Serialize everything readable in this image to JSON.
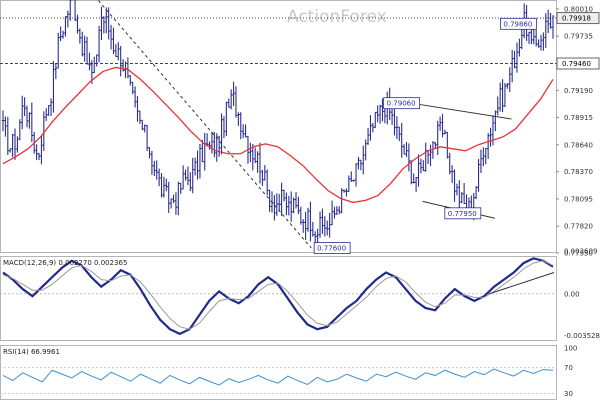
{
  "watermark": "ActionForex",
  "colors": {
    "price_bar": "#2b2f8f",
    "moving_average": "#e8333a",
    "macd_line": "#1f2a8a",
    "macd_signal": "#9a9a9a",
    "rsi_line": "#3d8fd6",
    "trendline": "#333333",
    "current_price_box": "#eeeeee"
  },
  "chart_data": [
    {
      "type": "ohlc",
      "panel": "price",
      "ylim": [
        0.7755,
        0.801
      ],
      "y_ticks": [
        "0.80010",
        "0.79735",
        "0.79460",
        "0.79190",
        "0.78915",
        "0.78640",
        "0.78370",
        "0.78095",
        "0.77820",
        "0.77550"
      ],
      "current_price_label": "0.79918",
      "horizontal_levels": [
        {
          "value": 0.79918,
          "style": "dotted"
        },
        {
          "value": 0.7946,
          "style": "dashed"
        }
      ],
      "annotations": [
        "0.79860",
        "0.79060",
        "0.77950",
        "0.77600"
      ],
      "series": [
        {
          "name": "price",
          "close_path": [
            0.788,
            0.7862,
            0.787,
            0.791,
            0.788,
            0.785,
            0.7893,
            0.792,
            0.7968,
            0.7993,
            0.8012,
            0.7975,
            0.795,
            0.793,
            0.7995,
            0.7985,
            0.7962,
            0.7952,
            0.7925,
            0.79,
            0.788,
            0.786,
            0.7835,
            0.7815,
            0.7808,
            0.7812,
            0.783,
            0.783,
            0.7845,
            0.7862,
            0.786,
            0.7868,
            0.7895,
            0.7912,
            0.7892,
            0.787,
            0.7855,
            0.7845,
            0.7815,
            0.7805,
            0.7808,
            0.7802,
            0.78,
            0.779,
            0.779,
            0.7778,
            0.7782,
            0.7784,
            0.7802,
            0.7815,
            0.7825,
            0.784,
            0.786,
            0.788,
            0.7895,
            0.7905,
            0.789,
            0.7868,
            0.785,
            0.783,
            0.7838,
            0.7862,
            0.7868,
            0.788,
            0.785,
            0.782,
            0.7805,
            0.78,
            0.7825,
            0.7863,
            0.788,
            0.7905,
            0.7917,
            0.794,
            0.7965,
            0.799,
            0.796,
            0.797,
            0.7985,
            0.7992
          ]
        },
        {
          "name": "moving-average",
          "values": [
            0.7845,
            0.7852,
            0.786,
            0.7872,
            0.7888,
            0.7902,
            0.7915,
            0.7928,
            0.7938,
            0.7942,
            0.794,
            0.793,
            0.7918,
            0.7905,
            0.7892,
            0.7878,
            0.7866,
            0.7858,
            0.7855,
            0.7855,
            0.7862,
            0.7865,
            0.7862,
            0.7853,
            0.7843,
            0.783,
            0.7818,
            0.781,
            0.7806,
            0.7808,
            0.7813,
            0.7825,
            0.784,
            0.785,
            0.7858,
            0.7862,
            0.786,
            0.7858,
            0.7864,
            0.7868,
            0.7872,
            0.788,
            0.7895,
            0.791,
            0.793
          ]
        }
      ]
    },
    {
      "type": "line",
      "panel": "macd",
      "title": "MACD(12,26,9) 0.002270 0.002365",
      "ylim": [
        -0.004,
        0.0032
      ],
      "y_ticks": [
        "0.003609",
        "0.00",
        "-0.003528"
      ],
      "series": [
        {
          "name": "macd",
          "values": [
            0.0018,
            0.0012,
            0.0004,
            -0.0002,
            0.0006,
            0.0014,
            0.0022,
            0.0028,
            0.0024,
            0.0014,
            0.0006,
            0.0012,
            0.002,
            0.0016,
            0.0004,
            -0.001,
            -0.0022,
            -0.003,
            -0.0034,
            -0.003,
            -0.0018,
            -0.0006,
            0.0002,
            -0.0004,
            -0.0008,
            -0.0002,
            0.0008,
            0.0014,
            0.0008,
            -0.0004,
            -0.0016,
            -0.0026,
            -0.003,
            -0.0028,
            -0.002,
            -0.0012,
            -0.0006,
            0.0004,
            0.0012,
            0.0018,
            0.0014,
            0.0004,
            -0.0006,
            -0.0012,
            -0.0014,
            -0.0004,
            0.0004,
            -0.0002,
            -0.0006,
            -0.0002,
            0.0006,
            0.0012,
            0.0018,
            0.0026,
            0.003,
            0.0028,
            0.0023
          ]
        },
        {
          "name": "signal",
          "values": [
            0.0016,
            0.0013,
            0.0008,
            0.0003,
            0.0003,
            0.0008,
            0.0015,
            0.0022,
            0.0024,
            0.0019,
            0.0012,
            0.0011,
            0.0015,
            0.0016,
            0.001,
            0.0,
            -0.0011,
            -0.0021,
            -0.0028,
            -0.003,
            -0.0025,
            -0.0015,
            -0.0006,
            -0.0004,
            -0.0005,
            -0.0004,
            0.0002,
            0.0008,
            0.0009,
            0.0002,
            -0.0008,
            -0.0018,
            -0.0025,
            -0.0027,
            -0.0024,
            -0.0017,
            -0.001,
            -0.0003,
            0.0006,
            0.0013,
            0.0015,
            0.001,
            0.0001,
            -0.0007,
            -0.0011,
            -0.0008,
            -0.0001,
            -0.0001,
            -0.0003,
            -0.0003,
            0.0002,
            0.0008,
            0.0014,
            0.0021,
            0.0026,
            0.0028,
            0.0024
          ]
        }
      ],
      "trendline": [
        0.0,
        0.0018
      ]
    },
    {
      "type": "line",
      "panel": "rsi",
      "title": "RSI(14) 66.9961",
      "ylim": [
        20,
        105
      ],
      "y_ticks": [
        "100",
        "70",
        "30"
      ],
      "series": [
        {
          "name": "rsi",
          "values": [
            58,
            50,
            62,
            55,
            48,
            66,
            60,
            54,
            64,
            57,
            51,
            63,
            56,
            49,
            60,
            53,
            46,
            58,
            51,
            45,
            55,
            49,
            43,
            53,
            47,
            52,
            58,
            51,
            46,
            57,
            50,
            44,
            55,
            48,
            52,
            60,
            54,
            49,
            60,
            56,
            63,
            57,
            52,
            62,
            58,
            66,
            60,
            55,
            64,
            59,
            68,
            62,
            57,
            66,
            61,
            67,
            66
          ]
        }
      ]
    }
  ]
}
